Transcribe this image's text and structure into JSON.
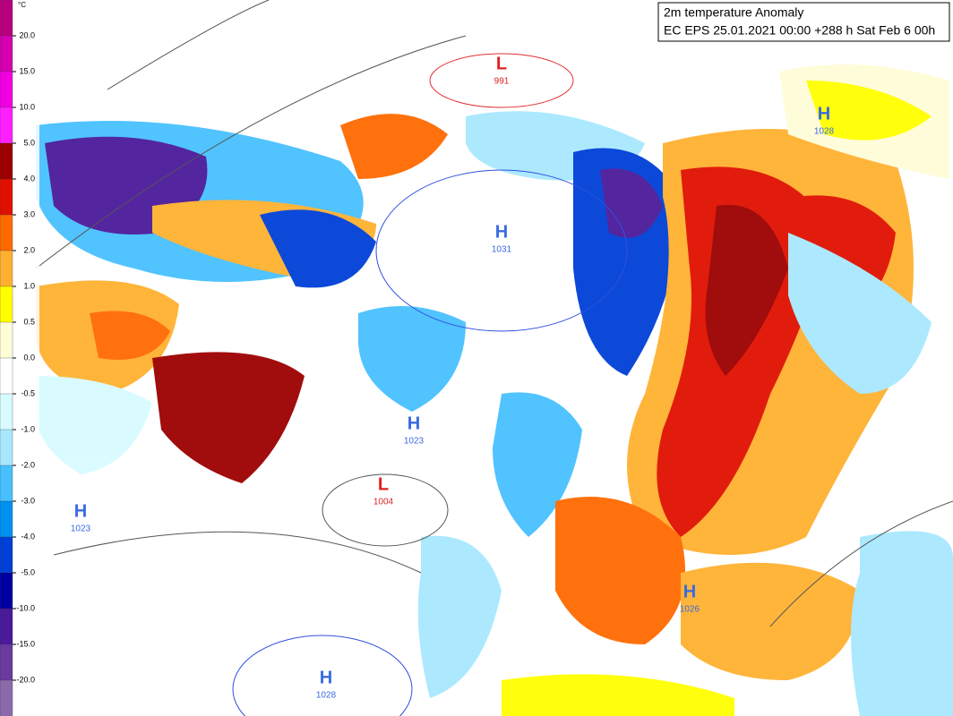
{
  "title": {
    "line1": "2m temperature Anomaly",
    "line2": "EC EPS 25.01.2021 00:00 +288 h Sat Feb 6 00h"
  },
  "legend": {
    "unit": "°C",
    "labels": [
      "20.0",
      "15.0",
      "10.0",
      "5.0",
      "4.0",
      "3.0",
      "2.0",
      "1.0",
      "0.5",
      "0.0",
      "-0.5",
      "-1.0",
      "-2.0",
      "-3.0",
      "-4.0",
      "-5.0",
      "-10.0",
      "-15.0",
      "-20.0"
    ],
    "colors": [
      "#b8007f",
      "#d400b0",
      "#f000e0",
      "#ff20ff",
      "#9c0000",
      "#e01000",
      "#ff6a00",
      "#ffb030",
      "#ffff00",
      "#fffcd8",
      "#ffffff",
      "#d8fbff",
      "#a8e8ff",
      "#48c0ff",
      "#0090f0",
      "#0040d8",
      "#0000a0",
      "#4a1a9a",
      "#6a3a9e",
      "#8a6aaa"
    ]
  },
  "pressure_centers": [
    {
      "letter": "L",
      "value": "991"
    },
    {
      "letter": "H",
      "value": "1031"
    },
    {
      "letter": "H",
      "value": "1028"
    },
    {
      "letter": "L",
      "value": "1004"
    },
    {
      "letter": "H",
      "value": "1023"
    },
    {
      "letter": "H",
      "value": "1023"
    },
    {
      "letter": "H",
      "value": "1028"
    },
    {
      "letter": "H",
      "value": "1026"
    }
  ]
}
